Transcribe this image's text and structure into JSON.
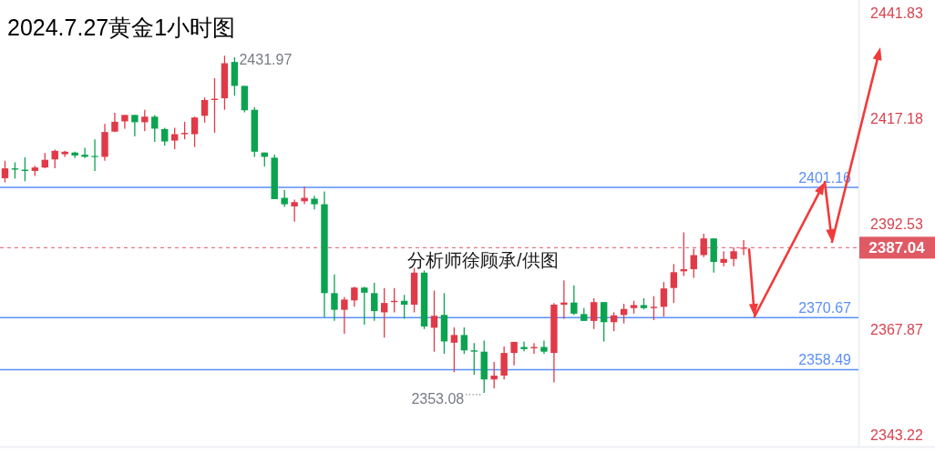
{
  "chart_data": {
    "type": "candlestick",
    "title": "2024.7.27黄金1小时图",
    "annotations": [
      "2431.97",
      "2353.08",
      "分析师徐顾承/供图"
    ],
    "categories": [
      null,
      null,
      null,
      null,
      null,
      null,
      null,
      null,
      null,
      null,
      null,
      null,
      null,
      null,
      null,
      null,
      null,
      null,
      null,
      null,
      null,
      null,
      null,
      null,
      null,
      null,
      null,
      null,
      null,
      null,
      null,
      null,
      null,
      null,
      null,
      null,
      null,
      null,
      null,
      null,
      null,
      null,
      null,
      null,
      null,
      null,
      null,
      null,
      null,
      null,
      null,
      null,
      null,
      null,
      null,
      null,
      null,
      null,
      null,
      null,
      null,
      null,
      null,
      null,
      null,
      null,
      null,
      null,
      null,
      null,
      null,
      null,
      null,
      null,
      null,
      null,
      null,
      null,
      null,
      null,
      null,
      null,
      null,
      null,
      null,
      null
    ],
    "ohlc": [
      [
        2403.3,
        2407.4,
        2402.3,
        2405.6
      ],
      [
        2405.6,
        2407.0,
        2403.2,
        2405.3
      ],
      [
        2405.3,
        2408.2,
        2402.6,
        2405.0
      ],
      [
        2405.0,
        2406.2,
        2403.8,
        2405.8
      ],
      [
        2405.8,
        2409.2,
        2405.6,
        2407.6
      ],
      [
        2407.7,
        2410.0,
        2405.6,
        2409.7
      ],
      [
        2408.9,
        2409.7,
        2408.3,
        2409.5
      ],
      [
        2409.3,
        2409.5,
        2408.0,
        2408.6
      ],
      [
        2408.8,
        2410.4,
        2408.0,
        2408.3
      ],
      [
        2408.5,
        2412.4,
        2405.0,
        2408.3
      ],
      [
        2408.3,
        2416.0,
        2407.4,
        2414.1
      ],
      [
        2414.2,
        2418.6,
        2414.1,
        2416.5
      ],
      [
        2416.6,
        2418.1,
        2414.9,
        2418.1
      ],
      [
        2418.1,
        2418.1,
        2413.1,
        2416.4
      ],
      [
        2416.4,
        2419.3,
        2414.3,
        2417.7
      ],
      [
        2417.7,
        2418.1,
        2411.8,
        2414.9
      ],
      [
        2414.8,
        2415.1,
        2410.9,
        2411.9
      ],
      [
        2412.1,
        2415.1,
        2410.1,
        2413.6
      ],
      [
        2413.6,
        2416.5,
        2412.4,
        2413.9
      ],
      [
        2413.6,
        2417.7,
        2410.6,
        2417.5
      ],
      [
        2417.9,
        2422.2,
        2416.3,
        2421.6
      ],
      [
        2421.6,
        2426.7,
        2413.9,
        2421.9
      ],
      [
        2422.0,
        2431.97,
        2419.3,
        2430.2
      ],
      [
        2430.5,
        2431.6,
        2422.6,
        2424.9
      ],
      [
        2424.9,
        2424.9,
        2418.7,
        2419.2
      ],
      [
        2419.3,
        2419.9,
        2408.3,
        2409.5
      ],
      [
        2409.3,
        2409.3,
        2406.0,
        2408.3
      ],
      [
        2408.1,
        2408.8,
        2398.4,
        2398.4
      ],
      [
        2398.7,
        2400.5,
        2396.6,
        2397.2
      ],
      [
        2396.7,
        2398.3,
        2393.1,
        2397.7
      ],
      [
        2397.9,
        2401.3,
        2397.2,
        2398.7
      ],
      [
        2398.5,
        2399.2,
        2396.0,
        2397.2
      ],
      [
        2397.2,
        2400.2,
        2370.8,
        2376.4
      ],
      [
        2376.4,
        2380.8,
        2369.9,
        2372.5
      ],
      [
        2372.5,
        2375.5,
        2366.9,
        2374.9
      ],
      [
        2374.7,
        2377.9,
        2373.2,
        2377.7
      ],
      [
        2377.7,
        2377.9,
        2369.0,
        2376.5
      ],
      [
        2376.4,
        2378.8,
        2369.9,
        2372.2
      ],
      [
        2371.9,
        2377.6,
        2366.0,
        2374.1
      ],
      [
        2374.3,
        2377.6,
        2371.9,
        2374.6
      ],
      [
        2374.6,
        2376.0,
        2370.4,
        2373.7
      ],
      [
        2373.7,
        2382.3,
        2371.9,
        2381.2
      ],
      [
        2381.2,
        2381.7,
        2368.0,
        2368.6
      ],
      [
        2368.3,
        2377.0,
        2362.7,
        2371.1
      ],
      [
        2371.3,
        2376.4,
        2362.2,
        2365.1
      ],
      [
        2364.8,
        2368.4,
        2357.9,
        2366.6
      ],
      [
        2366.6,
        2368.4,
        2362.2,
        2363.0
      ],
      [
        2363.0,
        2364.7,
        2357.3,
        2362.7
      ],
      [
        2362.7,
        2365.3,
        2353.08,
        2356.2
      ],
      [
        2356.2,
        2360.3,
        2354.1,
        2357.1
      ],
      [
        2357.1,
        2363.9,
        2356.2,
        2362.4
      ],
      [
        2362.4,
        2365.0,
        2359.5,
        2365.0
      ],
      [
        2363.8,
        2365.1,
        2362.8,
        2363.3
      ],
      [
        2363.5,
        2364.7,
        2362.2,
        2363.8
      ],
      [
        2363.8,
        2365.3,
        2362.2,
        2362.7
      ],
      [
        2362.4,
        2374.1,
        2355.5,
        2373.7
      ],
      [
        2373.7,
        2379.4,
        2370.4,
        2374.2
      ],
      [
        2374.2,
        2378.2,
        2371.3,
        2371.6
      ],
      [
        2371.5,
        2372.9,
        2369.9,
        2369.9
      ],
      [
        2369.9,
        2375.2,
        2368.0,
        2374.3
      ],
      [
        2374.3,
        2374.3,
        2365.1,
        2369.6
      ],
      [
        2369.6,
        2371.9,
        2367.5,
        2371.2
      ],
      [
        2371.3,
        2373.9,
        2369.3,
        2372.7
      ],
      [
        2372.9,
        2374.6,
        2371.6,
        2373.6
      ],
      [
        2373.6,
        2375.2,
        2372.6,
        2372.9
      ],
      [
        2372.9,
        2375.7,
        2370.1,
        2373.2
      ],
      [
        2373.2,
        2379.0,
        2370.9,
        2377.5
      ],
      [
        2377.6,
        2383.2,
        2374.1,
        2381.3
      ],
      [
        2381.5,
        2390.6,
        2380.4,
        2382.0
      ],
      [
        2382.0,
        2386.8,
        2380.0,
        2385.3
      ],
      [
        2385.3,
        2390.3,
        2384.8,
        2389.2
      ],
      [
        2389.2,
        2389.2,
        2381.2,
        2383.7
      ],
      [
        2383.5,
        2386.2,
        2382.7,
        2384.4
      ],
      [
        2384.4,
        2387.1,
        2382.7,
        2386.2
      ],
      [
        2386.8,
        2388.8,
        2385.3,
        2387.04
      ],
      null,
      null,
      null,
      null,
      null,
      null,
      null,
      null,
      null,
      null,
      null
    ],
    "colors": [
      "#e03a48",
      "#0ba350",
      "#0ba350",
      "#e03a48",
      "#e03a48",
      "#e03a48",
      "#e03a48",
      "#0ba350",
      "#0ba350",
      "#0ba350",
      "#e03a48",
      "#e03a48",
      "#e03a48",
      "#0ba350",
      "#e03a48",
      "#0ba350",
      "#0ba350",
      "#e03a48",
      "#e03a48",
      "#e03a48",
      "#e03a48",
      "#e03a48",
      "#e03a48",
      "#0ba350",
      "#0ba350",
      "#0ba350",
      "#0ba350",
      "#0ba350",
      "#0ba350",
      "#e03a48",
      "#e03a48",
      "#0ba350",
      "#0ba350",
      "#0ba350",
      "#e03a48",
      "#e03a48",
      "#0ba350",
      "#0ba350",
      "#e03a48",
      "#e03a48",
      "#0ba350",
      "#e03a48",
      "#0ba350",
      "#e03a48",
      "#0ba350",
      "#e03a48",
      "#0ba350",
      "#0ba350",
      "#0ba350",
      "#e03a48",
      "#e03a48",
      "#e03a48",
      "#0ba350",
      "#e03a48",
      "#0ba350",
      "#e03a48",
      "#e03a48",
      "#0ba350",
      "#0ba350",
      "#e03a48",
      "#0ba350",
      "#e03a48",
      "#e03a48",
      "#e03a48",
      "#0ba350",
      "#e03a48",
      "#e03a48",
      "#e03a48",
      "#e03a48",
      "#e03a48",
      "#e03a48",
      "#0ba350",
      "#e03a48",
      "#e03a48",
      "#e03a48",
      null,
      null,
      null,
      null,
      null,
      null,
      null,
      null,
      null,
      null,
      null
    ],
    "ylim": [
      2340.5,
      2445
    ],
    "yticks": [
      2441.83,
      2417.18,
      2392.53,
      2367.87,
      2343.22
    ],
    "ref_lines": [
      {
        "axis": "y",
        "value": 2401.16,
        "label": "2401.16",
        "color": "#5b8ff9"
      },
      {
        "axis": "y",
        "value": 2370.67,
        "label": "2370.67",
        "color": "#5b8ff9"
      },
      {
        "axis": "y",
        "value": 2358.49,
        "label": "2358.49",
        "color": "#5b8ff9"
      },
      {
        "axis": "y",
        "value": 2387.04,
        "label": "2387.04",
        "color": "#e05a64",
        "line_style": "dashed"
      }
    ],
    "tick_labels": "y"
  }
}
